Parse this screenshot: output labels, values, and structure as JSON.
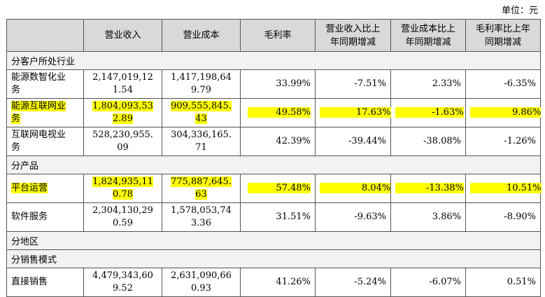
{
  "unit_label": "单位：元",
  "headers": [
    "",
    "营业收入",
    "营业成本",
    "毛利率",
    "营业收入比上年同期增减",
    "营业成本比上年同期增减",
    "毛利率比上年同期增减"
  ],
  "header_lines": {
    "h4": [
      "营业收入比上",
      "年同期增减"
    ],
    "h5": [
      "营业成本比上",
      "年同期增减"
    ],
    "h6": [
      "毛利率比上年",
      "同期增减"
    ]
  },
  "sections": {
    "s1": "分客户所处行业",
    "s2": "分产品",
    "s3": "分地区",
    "s4": "分销售模式"
  },
  "rows": {
    "r1": {
      "name": [
        "能源数智化业",
        "务"
      ],
      "rev": [
        "2,147,019,12",
        "1.54"
      ],
      "cost": [
        "1,417,198,64",
        "9.79"
      ],
      "gm": "33.99%",
      "rev_chg": "-7.51%",
      "cost_chg": "2.33%",
      "gm_chg": "-6.35%",
      "highlight": false
    },
    "r2": {
      "name": [
        "能源互联网业",
        "务"
      ],
      "rev": [
        "1,804,093,53",
        "2.89"
      ],
      "cost": [
        "909,555,845.",
        "43"
      ],
      "gm": "49.58%",
      "rev_chg": "17.63%",
      "cost_chg": "-1.63%",
      "gm_chg": "9.86%",
      "highlight": true
    },
    "r3": {
      "name": [
        "互联网电视业",
        "务"
      ],
      "rev": [
        "528,230,955.",
        "09"
      ],
      "cost": [
        "304,336,165.",
        "71"
      ],
      "gm": "42.39%",
      "rev_chg": "-39.44%",
      "cost_chg": "-38.08%",
      "gm_chg": "-1.26%",
      "highlight": false
    },
    "r4": {
      "name": [
        "平台运营"
      ],
      "rev": [
        "1,824,935,11",
        "0.78"
      ],
      "cost": [
        "775,887,645.",
        "63"
      ],
      "gm": "57.48%",
      "rev_chg": "8.04%",
      "cost_chg": "-13.38%",
      "gm_chg": "10.51%",
      "highlight": true
    },
    "r5": {
      "name": [
        "软件服务"
      ],
      "rev": [
        "2,304,130,29",
        "0.59"
      ],
      "cost": [
        "1,578,053,74",
        "3.36"
      ],
      "gm": "31.51%",
      "rev_chg": "-9.63%",
      "cost_chg": "3.86%",
      "gm_chg": "-8.90%",
      "highlight": false
    },
    "r6": {
      "name": [
        "直接销售"
      ],
      "rev": [
        "4,479,343,60",
        "9.52"
      ],
      "cost": [
        "2,631,090,66",
        "0.93"
      ],
      "gm": "41.26%",
      "rev_chg": "-5.24%",
      "cost_chg": "-6.07%",
      "gm_chg": "0.51%",
      "highlight": false
    }
  },
  "colors": {
    "highlight": "#ffff00",
    "header_bg": "#d9d9d9",
    "section_bg": "#f2f2f2"
  }
}
